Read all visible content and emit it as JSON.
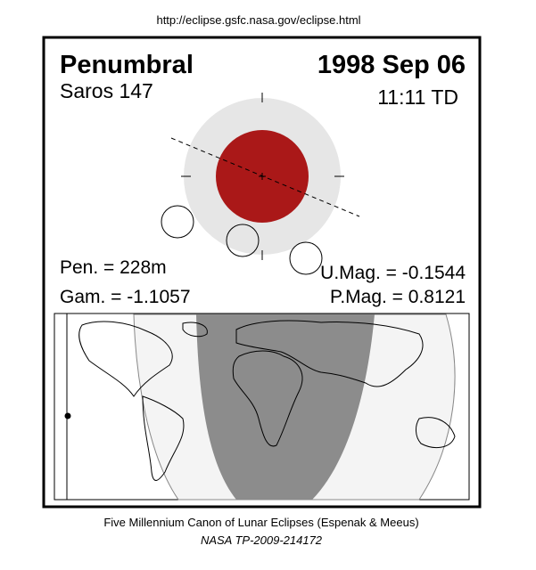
{
  "url": "http://eclipse.gsfc.nasa.gov/eclipse.html",
  "eclipse": {
    "type": "Penumbral",
    "date": "1998 Sep 06",
    "saros": "Saros 147",
    "time": "11:11 TD",
    "pen": "Pen. = 228m",
    "gam": "Gam. = -1.1057",
    "umag": "U.Mag. = -0.1544",
    "pmag": "P.Mag. = 0.8121"
  },
  "footer": {
    "line1": "Five Millennium Canon of Lunar Eclipses (Espenak & Meeus)",
    "line2": "NASA TP-2009-214172"
  }
}
